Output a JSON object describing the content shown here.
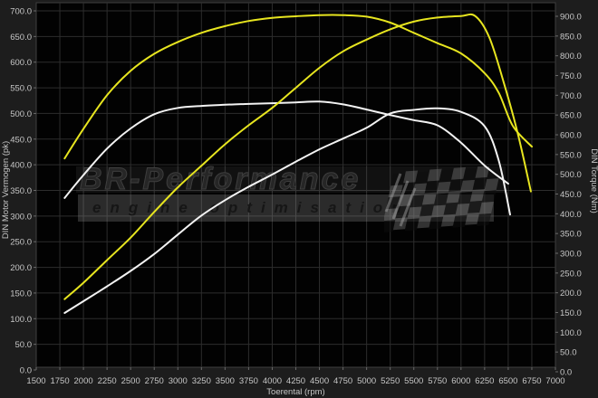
{
  "watermark": {
    "brand": "BR-Performance",
    "tagline": "engine optimisation"
  },
  "colors": {
    "outer_background": "#1d1d1d",
    "plot_background": "#020202",
    "gridline": "#2d2d2d",
    "plot_border": "#3f3f3f",
    "tick_label": "#c6c6c6",
    "axis_title": "#c6c6c6",
    "tuned_curve": "#e7e51f",
    "stock_curve": "#f3f3f3"
  },
  "chart_data": {
    "type": "line",
    "title": "",
    "x_axis": {
      "label": "Toerental (rpm)",
      "min": 1500,
      "max": 7000,
      "tick_step": 250,
      "grid": true
    },
    "y_left_axis": {
      "label": "DIN Motor Vermogen (pk)",
      "min": 0,
      "max": 700,
      "tick_step": 50,
      "tick_decimals": 1,
      "grid": true
    },
    "y_right_axis": {
      "label": "DIN Torque (Nm)",
      "min": 0,
      "max": 900,
      "tick_step": 50,
      "tick_decimals": 1,
      "grid": false
    },
    "legend": "none",
    "series": [
      {
        "name": "stock-power",
        "unit": "pk",
        "axis": "left",
        "color": "#f3f3f3",
        "points": [
          [
            1800,
            111
          ],
          [
            2000,
            134
          ],
          [
            2250,
            163
          ],
          [
            2500,
            193
          ],
          [
            2750,
            226
          ],
          [
            3000,
            264
          ],
          [
            3250,
            301
          ],
          [
            3500,
            331
          ],
          [
            3750,
            357
          ],
          [
            4000,
            381
          ],
          [
            4250,
            406
          ],
          [
            4500,
            430
          ],
          [
            4750,
            451
          ],
          [
            5000,
            472
          ],
          [
            5250,
            500
          ],
          [
            5500,
            507
          ],
          [
            5750,
            510
          ],
          [
            6000,
            503
          ],
          [
            6250,
            475
          ],
          [
            6400,
            408
          ],
          [
            6520,
            303
          ]
        ]
      },
      {
        "name": "stock-torque",
        "unit": "Nm",
        "axis": "right",
        "color": "#f3f3f3",
        "points": [
          [
            1800,
            440
          ],
          [
            2000,
            498
          ],
          [
            2250,
            565
          ],
          [
            2500,
            616
          ],
          [
            2750,
            652
          ],
          [
            3000,
            668
          ],
          [
            3250,
            673
          ],
          [
            3500,
            676
          ],
          [
            3750,
            678
          ],
          [
            4000,
            680
          ],
          [
            4250,
            682
          ],
          [
            4500,
            684
          ],
          [
            4750,
            677
          ],
          [
            5000,
            664
          ],
          [
            5250,
            650
          ],
          [
            5500,
            637
          ],
          [
            5750,
            624
          ],
          [
            6000,
            580
          ],
          [
            6250,
            522
          ],
          [
            6500,
            476
          ]
        ]
      },
      {
        "name": "tuned-power",
        "unit": "pk",
        "axis": "left",
        "color": "#e7e51f",
        "points": [
          [
            1800,
            138
          ],
          [
            2000,
            170
          ],
          [
            2250,
            214
          ],
          [
            2500,
            258
          ],
          [
            2750,
            308
          ],
          [
            3000,
            356
          ],
          [
            3250,
            398
          ],
          [
            3500,
            440
          ],
          [
            3750,
            477
          ],
          [
            4000,
            511
          ],
          [
            4250,
            550
          ],
          [
            4500,
            589
          ],
          [
            4750,
            621
          ],
          [
            5000,
            644
          ],
          [
            5250,
            664
          ],
          [
            5500,
            679
          ],
          [
            5750,
            687
          ],
          [
            6000,
            690
          ],
          [
            6150,
            690
          ],
          [
            6300,
            648
          ],
          [
            6450,
            562
          ],
          [
            6600,
            462
          ],
          [
            6740,
            348
          ]
        ]
      },
      {
        "name": "tuned-torque",
        "unit": "Nm",
        "axis": "right",
        "color": "#e7e51f",
        "points": [
          [
            1800,
            540
          ],
          [
            2000,
            615
          ],
          [
            2250,
            700
          ],
          [
            2500,
            762
          ],
          [
            2750,
            805
          ],
          [
            3000,
            835
          ],
          [
            3250,
            858
          ],
          [
            3500,
            875
          ],
          [
            3750,
            888
          ],
          [
            4000,
            896
          ],
          [
            4250,
            900
          ],
          [
            4500,
            903
          ],
          [
            4750,
            903
          ],
          [
            5000,
            899
          ],
          [
            5250,
            884
          ],
          [
            5500,
            858
          ],
          [
            5750,
            832
          ],
          [
            6000,
            806
          ],
          [
            6250,
            756
          ],
          [
            6400,
            706
          ],
          [
            6550,
            622
          ],
          [
            6750,
            570
          ]
        ]
      }
    ]
  }
}
